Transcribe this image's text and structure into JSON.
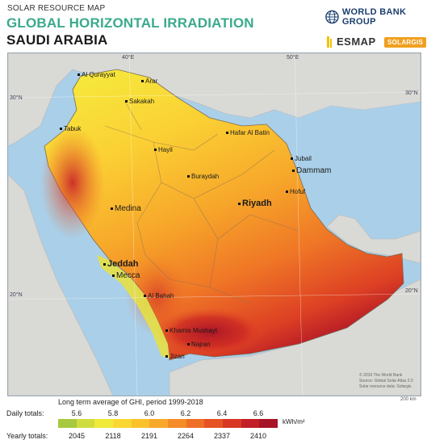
{
  "header": {
    "overline": "SOLAR RESOURCE MAP",
    "title": "GLOBAL HORIZONTAL IRRADIATION",
    "country": "SAUDI ARABIA"
  },
  "logos": {
    "world_bank": "WORLD BANK GROUP",
    "esmap": "ESMAP",
    "solargis": "SOLARGIS"
  },
  "map": {
    "grid_labels": [
      "40°E",
      "50°E",
      "30°N",
      "20°N",
      "30°N",
      "20°N"
    ],
    "cities": [
      {
        "name": "Al Qurayyat",
        "size": "small"
      },
      {
        "name": "Arar",
        "size": "small"
      },
      {
        "name": "Sakakah",
        "size": "small"
      },
      {
        "name": "Tabuk",
        "size": "small"
      },
      {
        "name": "Hafar Al Batin",
        "size": "small"
      },
      {
        "name": "Hayil",
        "size": "small"
      },
      {
        "name": "Jubail",
        "size": "small"
      },
      {
        "name": "Dammam",
        "size": "medium"
      },
      {
        "name": "Buraydah",
        "size": "small"
      },
      {
        "name": "Hofuf",
        "size": "small"
      },
      {
        "name": "Riyadh",
        "size": "large"
      },
      {
        "name": "Medina",
        "size": "medium"
      },
      {
        "name": "Jeddah",
        "size": "large"
      },
      {
        "name": "Mecca",
        "size": "medium"
      },
      {
        "name": "Al Bahah",
        "size": "small"
      },
      {
        "name": "Khamis Mushayt",
        "size": "small"
      },
      {
        "name": "Najran",
        "size": "small"
      },
      {
        "name": "Jizan",
        "size": "small"
      }
    ],
    "credits": [
      "© 2019 The World Bank",
      "Source: Global Solar Atlas 2.0",
      "Solar resource data: Solargis"
    ],
    "scale_label": "200 km"
  },
  "legend": {
    "title": "Long term average of GHI, period 1999-2018",
    "daily_label": "Daily totals:",
    "yearly_label": "Yearly totals:",
    "daily_ticks": [
      "5.6",
      "5.8",
      "6.0",
      "6.2",
      "6.4",
      "6.6"
    ],
    "yearly_ticks": [
      "2045",
      "2118",
      "2191",
      "2264",
      "2337",
      "2410"
    ],
    "unit": "kWh/m²",
    "colors": [
      "#a7c940",
      "#d0dd3e",
      "#f0ea3a",
      "#fbd733",
      "#fbc22c",
      "#f8a92a",
      "#f48c27",
      "#ef6f26",
      "#e75224",
      "#d93624",
      "#c21f26",
      "#a71327"
    ]
  }
}
